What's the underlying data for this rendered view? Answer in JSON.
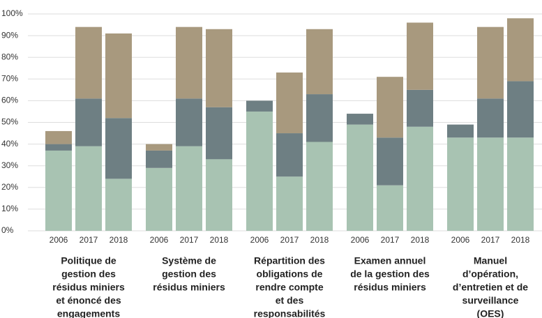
{
  "chart_data": {
    "type": "grouped-stacked-bar",
    "groups": [
      [
        "Politique de",
        "gestion des",
        "résidus miniers",
        "et énoncé des",
        "engagements"
      ],
      [
        "Système de",
        "gestion des",
        "résidus miniers"
      ],
      [
        "Répartition des",
        "obligations de",
        "rendre compte",
        "et des",
        "responsabilités"
      ],
      [
        "Examen annuel",
        "de la gestion des",
        "résidus miniers"
      ],
      [
        "Manuel",
        "d’opération,",
        "d’entretien et de",
        "surveillance",
        "(OES)"
      ]
    ],
    "categories": [
      "2006",
      "2017",
      "2018"
    ],
    "series": [
      {
        "color": "#a8c3b2",
        "values": [
          [
            37,
            39,
            24
          ],
          [
            29,
            39,
            33
          ],
          [
            55,
            25,
            41
          ],
          [
            49,
            21,
            48
          ],
          [
            43,
            43,
            43
          ]
        ]
      },
      {
        "color": "#6e7f83",
        "values": [
          [
            3,
            22,
            28
          ],
          [
            8,
            22,
            24
          ],
          [
            5,
            20,
            22
          ],
          [
            5,
            22,
            17
          ],
          [
            6,
            18,
            26
          ]
        ]
      },
      {
        "color": "#a8997e",
        "values": [
          [
            6,
            33,
            39
          ],
          [
            3,
            33,
            36
          ],
          [
            0,
            28,
            30
          ],
          [
            0,
            28,
            31
          ],
          [
            0,
            33,
            29
          ]
        ]
      }
    ],
    "ylim": [
      0,
      100
    ],
    "yticks": [
      {
        "value": 0,
        "label": "0%"
      },
      {
        "value": 10,
        "label": "10%"
      },
      {
        "value": 20,
        "label": "20%"
      },
      {
        "value": 30,
        "label": "30%"
      },
      {
        "value": 40,
        "label": "40%"
      },
      {
        "value": 50,
        "label": "50%"
      },
      {
        "value": 60,
        "label": "60%"
      },
      {
        "value": 70,
        "label": "70%"
      },
      {
        "value": 80,
        "label": "80%"
      },
      {
        "value": 90,
        "label": "90%"
      },
      {
        "value": 100,
        "label": "100%"
      }
    ],
    "grid": true
  }
}
